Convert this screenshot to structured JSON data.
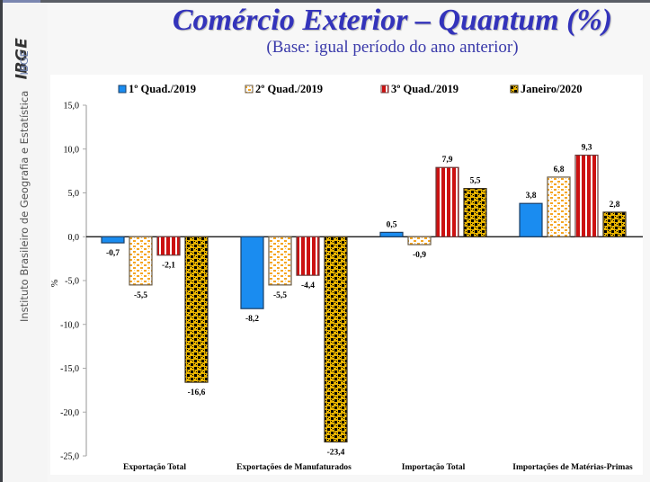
{
  "sidebar": {
    "logo_text": "IBGE",
    "abbr": "IBGE",
    "institution": "Instituto Brasileiro de Geografia e Estatística"
  },
  "header": {
    "title": "Comércio Exterior – Quantum (%)",
    "subtitle": "(Base: igual período do ano anterior)"
  },
  "colors": {
    "title": "#3333bb",
    "series1": "#1a8cf0",
    "series2": "#f5a623",
    "series3": "#cc1111",
    "series4": "#e8b400"
  },
  "chart_data": {
    "type": "bar",
    "title": "Comércio Exterior – Quantum (%)",
    "subtitle": "(Base: igual período do ano anterior)",
    "xlabel": "",
    "ylabel": "%",
    "ylim": [
      -25,
      15
    ],
    "yticks": [
      15,
      10,
      5,
      0,
      -5,
      -10,
      -15,
      -20,
      -25
    ],
    "ytick_labels": [
      "15,0",
      "10,0",
      "5,0",
      "0,0",
      "-5,0",
      "-10,0",
      "-15,0",
      "-20,0",
      "-25,0"
    ],
    "grid": false,
    "legend_position": "top",
    "categories": [
      "Exportação Total",
      "Exportações de Manufaturados",
      "Importação Total",
      "Importações de Matérias-Primas"
    ],
    "series": [
      {
        "name": "1º Quad./2019",
        "pattern": "solid",
        "values": [
          -0.7,
          -8.2,
          0.5,
          3.8
        ],
        "labels": [
          "-0,7",
          "-8,2",
          "0,5",
          "3,8"
        ]
      },
      {
        "name": "2º Quad./2019",
        "pattern": "dots",
        "values": [
          -5.5,
          -5.5,
          -0.9,
          6.8
        ],
        "labels": [
          "-5,5",
          "-5,5",
          "-0,9",
          "6,8"
        ]
      },
      {
        "name": "3º Quad./2019",
        "pattern": "stripes",
        "values": [
          -2.1,
          -4.4,
          7.9,
          9.3
        ],
        "labels": [
          "-2,1",
          "-4,4",
          "7,9",
          "9,3"
        ]
      },
      {
        "name": "Janeiro/2020",
        "pattern": "check",
        "values": [
          -16.6,
          -23.4,
          5.5,
          2.8
        ],
        "labels": [
          "-16,6",
          "-23,4",
          "5,5",
          "2,8"
        ]
      }
    ]
  }
}
